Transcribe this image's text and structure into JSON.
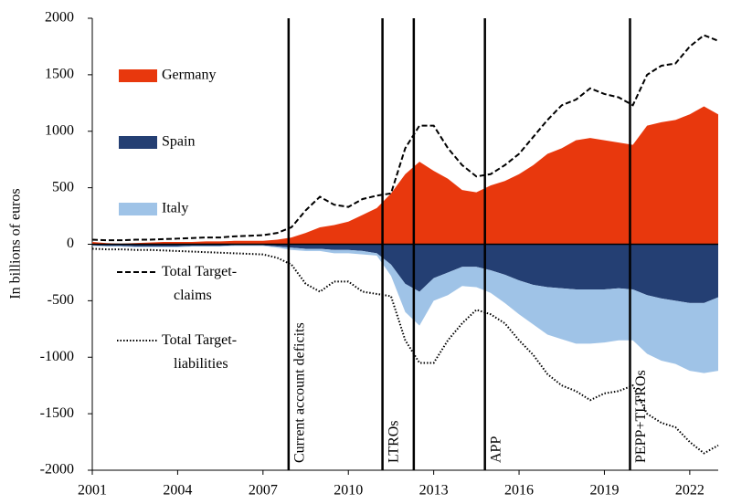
{
  "chart_data": {
    "type": "area",
    "y_label": "In billions of euros",
    "x": [
      2001,
      2001.5,
      2002,
      2002.5,
      2003,
      2003.5,
      2004,
      2004.5,
      2005,
      2005.5,
      2006,
      2006.5,
      2007,
      2007.5,
      2008,
      2008.5,
      2009,
      2009.5,
      2010,
      2010.5,
      2011,
      2011.5,
      2012,
      2012.5,
      2013,
      2013.5,
      2014,
      2014.5,
      2015,
      2015.5,
      2016,
      2016.5,
      2017,
      2017.5,
      2018,
      2018.5,
      2019,
      2019.5,
      2020,
      2020.5,
      2021,
      2021.5,
      2022,
      2022.5,
      2023
    ],
    "series": [
      {
        "name": "Germany",
        "kind": "area",
        "color": "#e8380d",
        "values": [
          20,
          10,
          5,
          10,
          15,
          20,
          20,
          20,
          25,
          25,
          30,
          30,
          30,
          40,
          60,
          100,
          150,
          170,
          200,
          260,
          320,
          450,
          620,
          730,
          650,
          580,
          480,
          460,
          520,
          560,
          620,
          700,
          800,
          850,
          920,
          940,
          920,
          900,
          880,
          1050,
          1080,
          1100,
          1150,
          1220,
          1150
        ]
      },
      {
        "name": "Spain",
        "kind": "area",
        "color": "#243f73",
        "values": [
          -10,
          -15,
          -15,
          -20,
          -20,
          -20,
          -20,
          -15,
          -15,
          -15,
          -10,
          -10,
          -10,
          -20,
          -30,
          -40,
          -40,
          -50,
          -50,
          -60,
          -80,
          -180,
          -350,
          -420,
          -300,
          -250,
          -200,
          -200,
          -230,
          -270,
          -320,
          -360,
          -380,
          -390,
          -400,
          -400,
          -400,
          -390,
          -400,
          -450,
          -480,
          -500,
          -520,
          -520,
          -470
        ]
      },
      {
        "name": "Italy",
        "kind": "area",
        "stack_on": 1,
        "color": "#9fc3e7",
        "values": [
          -5,
          -5,
          -5,
          -5,
          -5,
          -5,
          -5,
          -5,
          -5,
          -5,
          -5,
          -5,
          -5,
          -10,
          -20,
          -20,
          -20,
          -30,
          -30,
          -30,
          -20,
          -100,
          -250,
          -300,
          -200,
          -200,
          -170,
          -180,
          -200,
          -250,
          -300,
          -350,
          -420,
          -450,
          -480,
          -480,
          -470,
          -460,
          -450,
          -520,
          -550,
          -560,
          -600,
          -620,
          -650
        ]
      },
      {
        "name": "Total Target-claims",
        "kind": "line",
        "dash": "dashed",
        "color": "#000000",
        "values": [
          40,
          35,
          35,
          40,
          40,
          45,
          50,
          55,
          60,
          60,
          70,
          75,
          80,
          100,
          150,
          300,
          420,
          350,
          330,
          400,
          430,
          450,
          850,
          1050,
          1050,
          850,
          700,
          600,
          620,
          700,
          800,
          950,
          1100,
          1230,
          1280,
          1380,
          1330,
          1300,
          1230,
          1500,
          1580,
          1600,
          1750,
          1850,
          1800
        ]
      },
      {
        "name": "Total Target-liabilities",
        "kind": "line",
        "dash": "dotted",
        "color": "#000000",
        "values": [
          -40,
          -45,
          -45,
          -50,
          -50,
          -55,
          -60,
          -65,
          -70,
          -75,
          -80,
          -85,
          -90,
          -120,
          -180,
          -350,
          -420,
          -330,
          -330,
          -420,
          -440,
          -460,
          -850,
          -1050,
          -1050,
          -850,
          -700,
          -580,
          -620,
          -700,
          -850,
          -980,
          -1150,
          -1250,
          -1300,
          -1380,
          -1320,
          -1300,
          -1250,
          -1500,
          -1580,
          -1620,
          -1750,
          -1850,
          -1780
        ]
      }
    ],
    "events": [
      {
        "x": 2007.9,
        "label": "Current account deficits"
      },
      {
        "x": 2011.2,
        "label": "LTROs"
      },
      {
        "x": 2012.3
      },
      {
        "x": 2014.8,
        "label": "APP"
      },
      {
        "x": 2019.9,
        "label": "PEPP+TLTROs"
      }
    ],
    "xlim": [
      2001,
      2023
    ],
    "xticks": [
      2001,
      2004,
      2007,
      2010,
      2013,
      2016,
      2019,
      2022
    ],
    "ylim": [
      -2000,
      2000
    ],
    "yticks": [
      -2000,
      -1500,
      -1000,
      -500,
      0,
      500,
      1000,
      1500,
      2000
    ],
    "legend": "upper left"
  }
}
